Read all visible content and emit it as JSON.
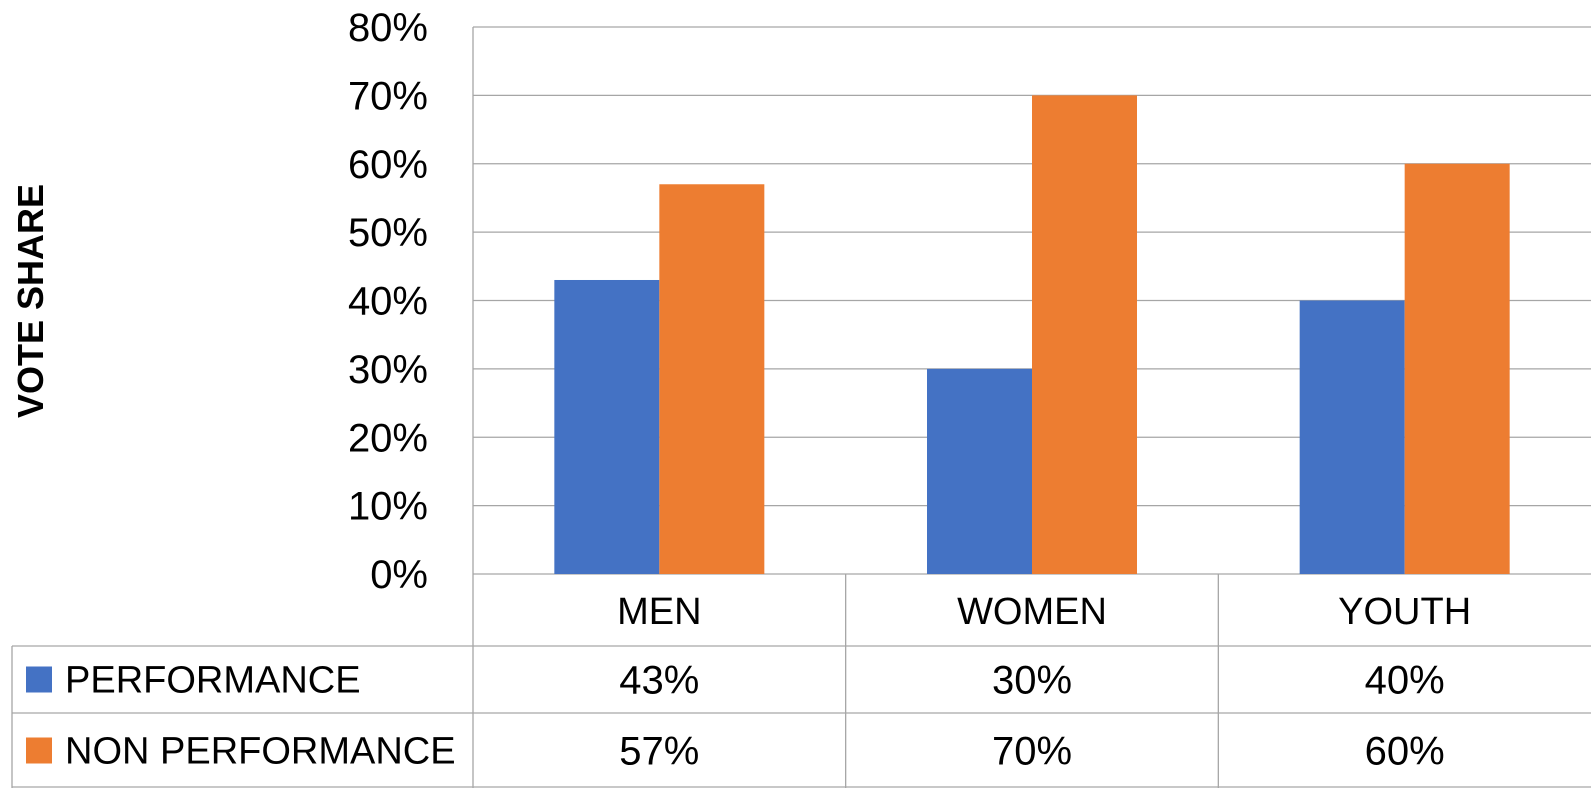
{
  "chart_data": {
    "type": "bar",
    "ylabel": "VOTE SHARE",
    "xlabel": "",
    "categories": [
      "MEN",
      "WOMEN",
      "YOUTH"
    ],
    "series": [
      {
        "name": "PERFORMANCE",
        "values": [
          43,
          30,
          40
        ],
        "color": "#4472C4",
        "labels": [
          "43%",
          "30%",
          "40%"
        ]
      },
      {
        "name": "NON PERFORMANCE",
        "values": [
          57,
          70,
          60
        ],
        "color": "#ED7D31",
        "labels": [
          "57%",
          "70%",
          "60%"
        ]
      }
    ],
    "ylim": [
      0,
      80
    ],
    "yticks": [
      0,
      10,
      20,
      30,
      40,
      50,
      60,
      70,
      80
    ],
    "ytick_labels": [
      "0%",
      "10%",
      "20%",
      "30%",
      "40%",
      "50%",
      "60%",
      "70%",
      "80%"
    ],
    "grid": true,
    "legend": "data-table",
    "data_table": true,
    "gridline_color": "#A6A6A6"
  }
}
